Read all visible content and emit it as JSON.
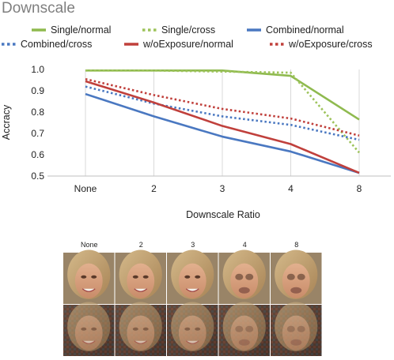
{
  "chart_data": {
    "type": "line",
    "title": "Downscale",
    "xlabel": "Downscale Ratio",
    "ylabel": "Accracy",
    "categories": [
      "None",
      "2",
      "3",
      "4",
      "8"
    ],
    "ylim": [
      0.5,
      1.0
    ],
    "yticks": [
      "0.5",
      "0.6",
      "0.7",
      "0.8",
      "0.9",
      "1.0"
    ],
    "grid": "vertical",
    "legend_position": "top",
    "series": [
      {
        "name": "Single/normal",
        "color": "#8fba4f",
        "style": "solid",
        "values": [
          0.995,
          0.995,
          0.995,
          0.97,
          0.765
        ]
      },
      {
        "name": "Single/cross",
        "color": "#9dc35a",
        "style": "dotted",
        "values": [
          0.995,
          0.995,
          0.99,
          0.985,
          0.61
        ]
      },
      {
        "name": "Combined/normal",
        "color": "#4a78c1",
        "style": "solid",
        "values": [
          0.885,
          0.78,
          0.685,
          0.615,
          0.515
        ]
      },
      {
        "name": "Combined/cross",
        "color": "#4a78c1",
        "style": "dotted",
        "values": [
          0.92,
          0.84,
          0.78,
          0.74,
          0.67
        ]
      },
      {
        "name": "w/oExposure/normal",
        "color": "#c0403c",
        "style": "solid",
        "values": [
          0.945,
          0.845,
          0.735,
          0.65,
          0.515
        ]
      },
      {
        "name": "w/oExposure/cross",
        "color": "#c0403c",
        "style": "dotted",
        "values": [
          0.955,
          0.88,
          0.815,
          0.77,
          0.69
        ]
      }
    ]
  },
  "faces": {
    "column_labels": [
      "None",
      "2",
      "3",
      "4",
      "8"
    ],
    "rows": 2
  }
}
